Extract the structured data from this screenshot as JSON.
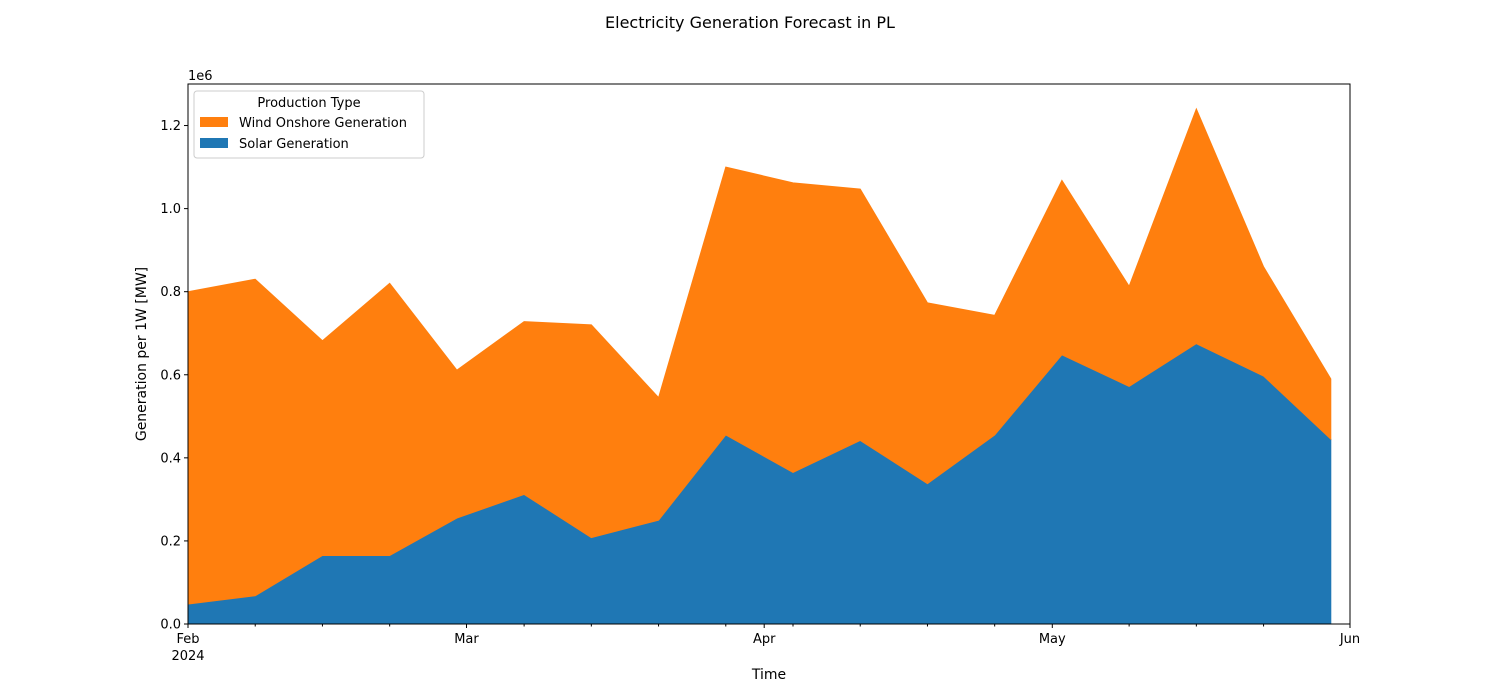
{
  "chart_data": {
    "type": "area",
    "stacked": true,
    "title": "Electricity Generation Forecast in PL",
    "xlabel": "Time",
    "ylabel": "Generation per 1W [MW]",
    "y_offset_label": "1e6",
    "ylim": [
      0,
      1300000
    ],
    "xlim": [
      "2024-02-01",
      "2024-06-01"
    ],
    "x": [
      "2024-02-01",
      "2024-02-08",
      "2024-02-15",
      "2024-02-22",
      "2024-02-29",
      "2024-03-07",
      "2024-03-14",
      "2024-03-21",
      "2024-03-28",
      "2024-04-04",
      "2024-04-11",
      "2024-04-18",
      "2024-04-25",
      "2024-05-02",
      "2024-05-09",
      "2024-05-16",
      "2024-05-23",
      "2024-05-30"
    ],
    "series": [
      {
        "name": "Solar Generation",
        "color": "#1f77b4",
        "values": [
          48000,
          68000,
          165000,
          165000,
          255000,
          312000,
          208000,
          250000,
          455000,
          365000,
          442000,
          338000,
          455000,
          648000,
          572000,
          675000,
          597000,
          445000
        ]
      },
      {
        "name": "Wind Onshore Generation",
        "color": "#ff7f0e",
        "values": [
          752000,
          762000,
          517000,
          655000,
          356000,
          416000,
          512000,
          295000,
          645000,
          697000,
          605000,
          435000,
          288000,
          420000,
          241000,
          565000,
          263000,
          145000
        ]
      }
    ],
    "y_ticks": [
      {
        "value": 0,
        "label": "0.0"
      },
      {
        "value": 200000,
        "label": "0.2"
      },
      {
        "value": 400000,
        "label": "0.4"
      },
      {
        "value": 600000,
        "label": "0.6"
      },
      {
        "value": 800000,
        "label": "0.8"
      },
      {
        "value": 1000000,
        "label": "1.0"
      },
      {
        "value": 1200000,
        "label": "1.2"
      }
    ],
    "x_major_ticks": [
      {
        "date": "2024-02-01",
        "label": "Feb",
        "sublabel": "2024"
      },
      {
        "date": "2024-03-01",
        "label": "Mar",
        "sublabel": ""
      },
      {
        "date": "2024-04-01",
        "label": "Apr",
        "sublabel": ""
      },
      {
        "date": "2024-05-01",
        "label": "May",
        "sublabel": ""
      },
      {
        "date": "2024-06-01",
        "label": "Jun",
        "sublabel": ""
      }
    ],
    "x_minor_ticks": [
      "2024-02-08",
      "2024-02-15",
      "2024-02-22",
      "2024-03-07",
      "2024-03-14",
      "2024-03-21",
      "2024-03-28",
      "2024-04-04",
      "2024-04-11",
      "2024-04-18",
      "2024-04-25",
      "2024-05-09",
      "2024-05-16",
      "2024-05-23"
    ],
    "legend": {
      "title": "Production Type",
      "placement": "top-left",
      "entries": [
        {
          "label": "Wind Onshore Generation",
          "color": "#ff7f0e"
        },
        {
          "label": "Solar Generation",
          "color": "#1f77b4"
        }
      ]
    },
    "grid": false
  }
}
